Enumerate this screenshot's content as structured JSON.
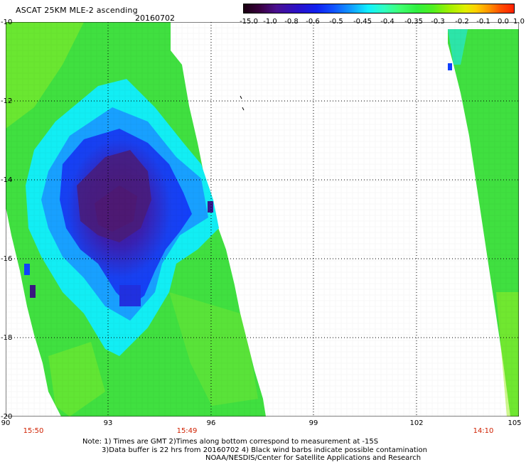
{
  "header": {
    "title": "ASCAT 25KM MLE-2 ascending",
    "date": "20160702"
  },
  "colorbar": {
    "labels": [
      "-15.0",
      "-1.0",
      "-0.8",
      "-0.6",
      "-0.5",
      "-0.45",
      "-0.4",
      "-0.35",
      "-0.3",
      "-0.2",
      "-0.1",
      "0.0",
      "1.0"
    ]
  },
  "map": {
    "lat_ticks": [
      "-10",
      "-12",
      "-14",
      "-16",
      "-18",
      "-20"
    ],
    "lon_ticks": [
      "90",
      "93",
      "96",
      "99",
      "102",
      "105"
    ],
    "pass_times": [
      "15:50",
      "15:49",
      "14:10"
    ],
    "colors": {
      "green": "#30e840",
      "cyan": "#10f0ff",
      "blue": "#1040ff",
      "purple": "#3a1890",
      "grid": "#000000",
      "time_label": "#d02000"
    }
  },
  "notes": {
    "line1": "Note: 1) Times are GMT 2)Times along bottom correspond to measurement at -15S",
    "line2": "3)Data buffer is 22 hrs from 20160702 4) Black wind barbs indicate possible contamination",
    "line3": "NOAA/NESDIS/Center for Satellite Applications and Research"
  }
}
